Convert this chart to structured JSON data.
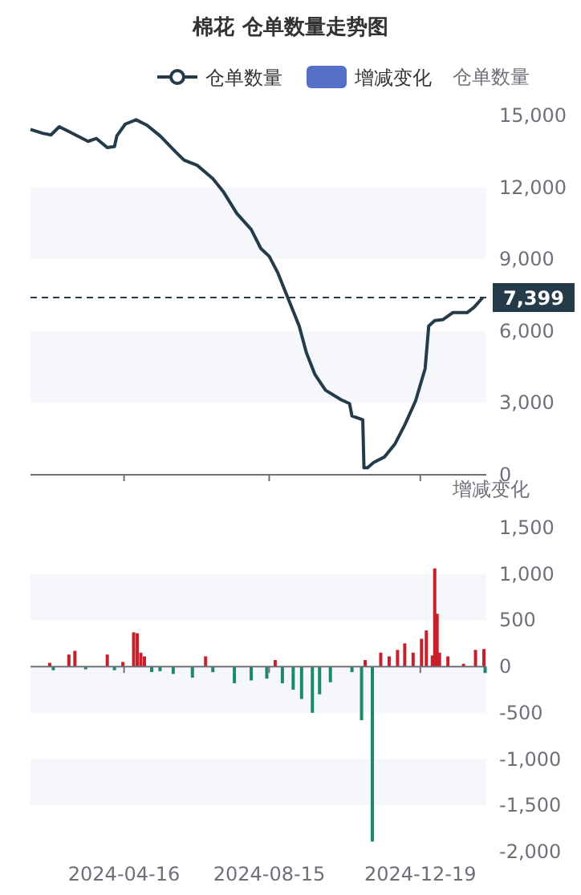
{
  "chart_data": [
    {
      "type": "line",
      "title": "棉花 仓单数量走势图",
      "ylabel": "仓单数量",
      "legend": "top",
      "tick_labels": "y",
      "bands": [
        {
          "axis": "y",
          "from": 9000,
          "to": 12000,
          "color": "#f5f7fb"
        },
        {
          "axis": "y",
          "from": 3000,
          "to": 6000,
          "color": "#f5f7fb"
        }
      ],
      "x": [
        "2024-01-29",
        "2024-02-08",
        "2024-02-15",
        "2024-02-22",
        "2024-03-01",
        "2024-03-17",
        "2024-03-24",
        "2024-04-02",
        "2024-04-08",
        "2024-04-10",
        "2024-04-17",
        "2024-04-26",
        "2024-05-05",
        "2024-05-16",
        "2024-05-29",
        "2024-06-05",
        "2024-06-16",
        "2024-06-29",
        "2024-07-08",
        "2024-07-19",
        "2024-07-31",
        "2024-08-08",
        "2024-08-15",
        "2024-08-22",
        "2024-08-31",
        "2024-09-09",
        "2024-09-15",
        "2024-09-22",
        "2024-10-01",
        "2024-10-14",
        "2024-10-21",
        "2024-10-23",
        "2024-11-01",
        "2024-11-02",
        "2024-11-05",
        "2024-11-10",
        "2024-11-19",
        "2024-11-28",
        "2024-12-06",
        "2024-12-15",
        "2024-12-23",
        "2024-12-26",
        "2024-12-31",
        "2025-01-07",
        "2025-01-15",
        "2025-01-27",
        "2025-02-02",
        "2025-02-09"
      ],
      "series": [
        {
          "name": "仓单数量",
          "color": "#243b4a",
          "values": [
            14420,
            14260,
            14190,
            14530,
            14330,
            13920,
            14040,
            13660,
            13700,
            14150,
            14640,
            14820,
            14600,
            14150,
            13480,
            13140,
            12920,
            12360,
            11800,
            10910,
            10240,
            9450,
            9120,
            8450,
            7330,
            6210,
            5100,
            4200,
            3530,
            3130,
            2970,
            2460,
            2300,
            290,
            290,
            510,
            740,
            1300,
            2080,
            3080,
            4430,
            6210,
            6440,
            6480,
            6770,
            6770,
            7000,
            7399
          ]
        }
      ],
      "xlim": [
        "2024-01-29",
        "2025-02-12"
      ],
      "xticks": [
        {
          "value": "2024-04-16",
          "label": null
        },
        {
          "value": "2024-08-15",
          "label": null
        },
        {
          "value": "2024-12-19",
          "label": null
        }
      ],
      "ylim": [
        0,
        15000
      ],
      "yticks": [
        0,
        {
          "value": 3000,
          "label": "3,000"
        },
        {
          "value": 6000,
          "label": "6,000"
        },
        {
          "value": 9000,
          "label": "9,000"
        },
        {
          "value": 12000,
          "label": "12,000"
        },
        {
          "value": 15000,
          "label": "15,000"
        }
      ],
      "ref_lines": [
        {
          "axis": "y",
          "value": 7399,
          "label": "7,399",
          "color": "#243b4a",
          "line_style": "dashed"
        }
      ]
    },
    {
      "type": "bar",
      "ylabel": "增减变化",
      "bands": [
        {
          "axis": "y",
          "from": 500,
          "to": 1000,
          "color": "#f5f7fb"
        },
        {
          "axis": "y",
          "from": -500,
          "to": 0,
          "color": "#f5f7fb"
        },
        {
          "axis": "y",
          "from": -1500,
          "to": -1000,
          "color": "#f5f7fb"
        }
      ],
      "x": [
        "2024-02-14",
        "2024-02-17",
        "2024-03-01",
        "2024-03-06",
        "2024-03-15",
        "2024-04-02",
        "2024-04-08",
        "2024-04-15",
        "2024-04-24",
        "2024-04-27",
        "2024-04-30",
        "2024-05-03",
        "2024-05-09",
        "2024-05-16",
        "2024-05-27",
        "2024-06-12",
        "2024-06-23",
        "2024-06-29",
        "2024-07-17",
        "2024-07-31",
        "2024-08-13",
        "2024-08-20",
        "2024-08-26",
        "2024-09-04",
        "2024-09-11",
        "2024-09-20",
        "2024-09-26",
        "2024-10-05",
        "2024-10-23",
        "2024-10-31",
        "2024-11-03",
        "2024-11-09",
        "2024-11-16",
        "2024-11-23",
        "2024-11-30",
        "2024-12-06",
        "2024-12-13",
        "2024-12-20",
        "2024-12-24",
        "2024-12-29",
        "2024-12-31",
        "2025-01-02",
        "2025-01-04",
        "2025-01-11",
        "2025-01-24",
        "2025-02-03",
        "2025-02-10",
        "2025-02-11"
      ],
      "series": [
        {
          "name": "增减变化",
          "color": "#5470c6",
          "values": [
            40,
            -40,
            130,
            170,
            -30,
            130,
            -40,
            50,
            370,
            360,
            150,
            110,
            -60,
            -50,
            -80,
            -120,
            110,
            -60,
            -180,
            -150,
            -130,
            70,
            -180,
            -250,
            -350,
            -500,
            -300,
            -170,
            -60,
            -580,
            70,
            -1890,
            150,
            110,
            180,
            250,
            150,
            300,
            390,
            120,
            1060,
            570,
            150,
            110,
            30,
            180,
            190,
            -70
          ],
          "colors": [
            "#c8202a",
            "#1b8a68",
            "#c8202a",
            "#c8202a",
            "#1b8a68",
            "#c8202a",
            "#1b8a68",
            "#c8202a",
            "#c8202a",
            "#c8202a",
            "#c8202a",
            "#c8202a",
            "#1b8a68",
            "#1b8a68",
            "#1b8a68",
            "#1b8a68",
            "#c8202a",
            "#1b8a68",
            "#1b8a68",
            "#1b8a68",
            "#1b8a68",
            "#c8202a",
            "#1b8a68",
            "#1b8a68",
            "#1b8a68",
            "#1b8a68",
            "#1b8a68",
            "#1b8a68",
            "#1b8a68",
            "#1b8a68",
            "#c8202a",
            "#1b8a68",
            "#c8202a",
            "#c8202a",
            "#c8202a",
            "#c8202a",
            "#c8202a",
            "#c8202a",
            "#c8202a",
            "#c8202a",
            "#c8202a",
            "#c8202a",
            "#c8202a",
            "#c8202a",
            "#c8202a",
            "#c8202a",
            "#c8202a",
            "#1b8a68"
          ]
        }
      ],
      "xlim": [
        "2024-01-29",
        "2025-02-12"
      ],
      "xticks": [
        "2024-04-16",
        "2024-08-15",
        "2024-12-19"
      ],
      "ylim": [
        -2000,
        1500
      ],
      "yticks": [
        {
          "value": -2000,
          "label": "-2,000"
        },
        {
          "value": -1500,
          "label": "-1,500"
        },
        {
          "value": -1000,
          "label": "-1,000"
        },
        -500,
        0,
        500,
        {
          "value": 1000,
          "label": "1,000"
        },
        {
          "value": 1500,
          "label": "1,500"
        }
      ]
    }
  ]
}
